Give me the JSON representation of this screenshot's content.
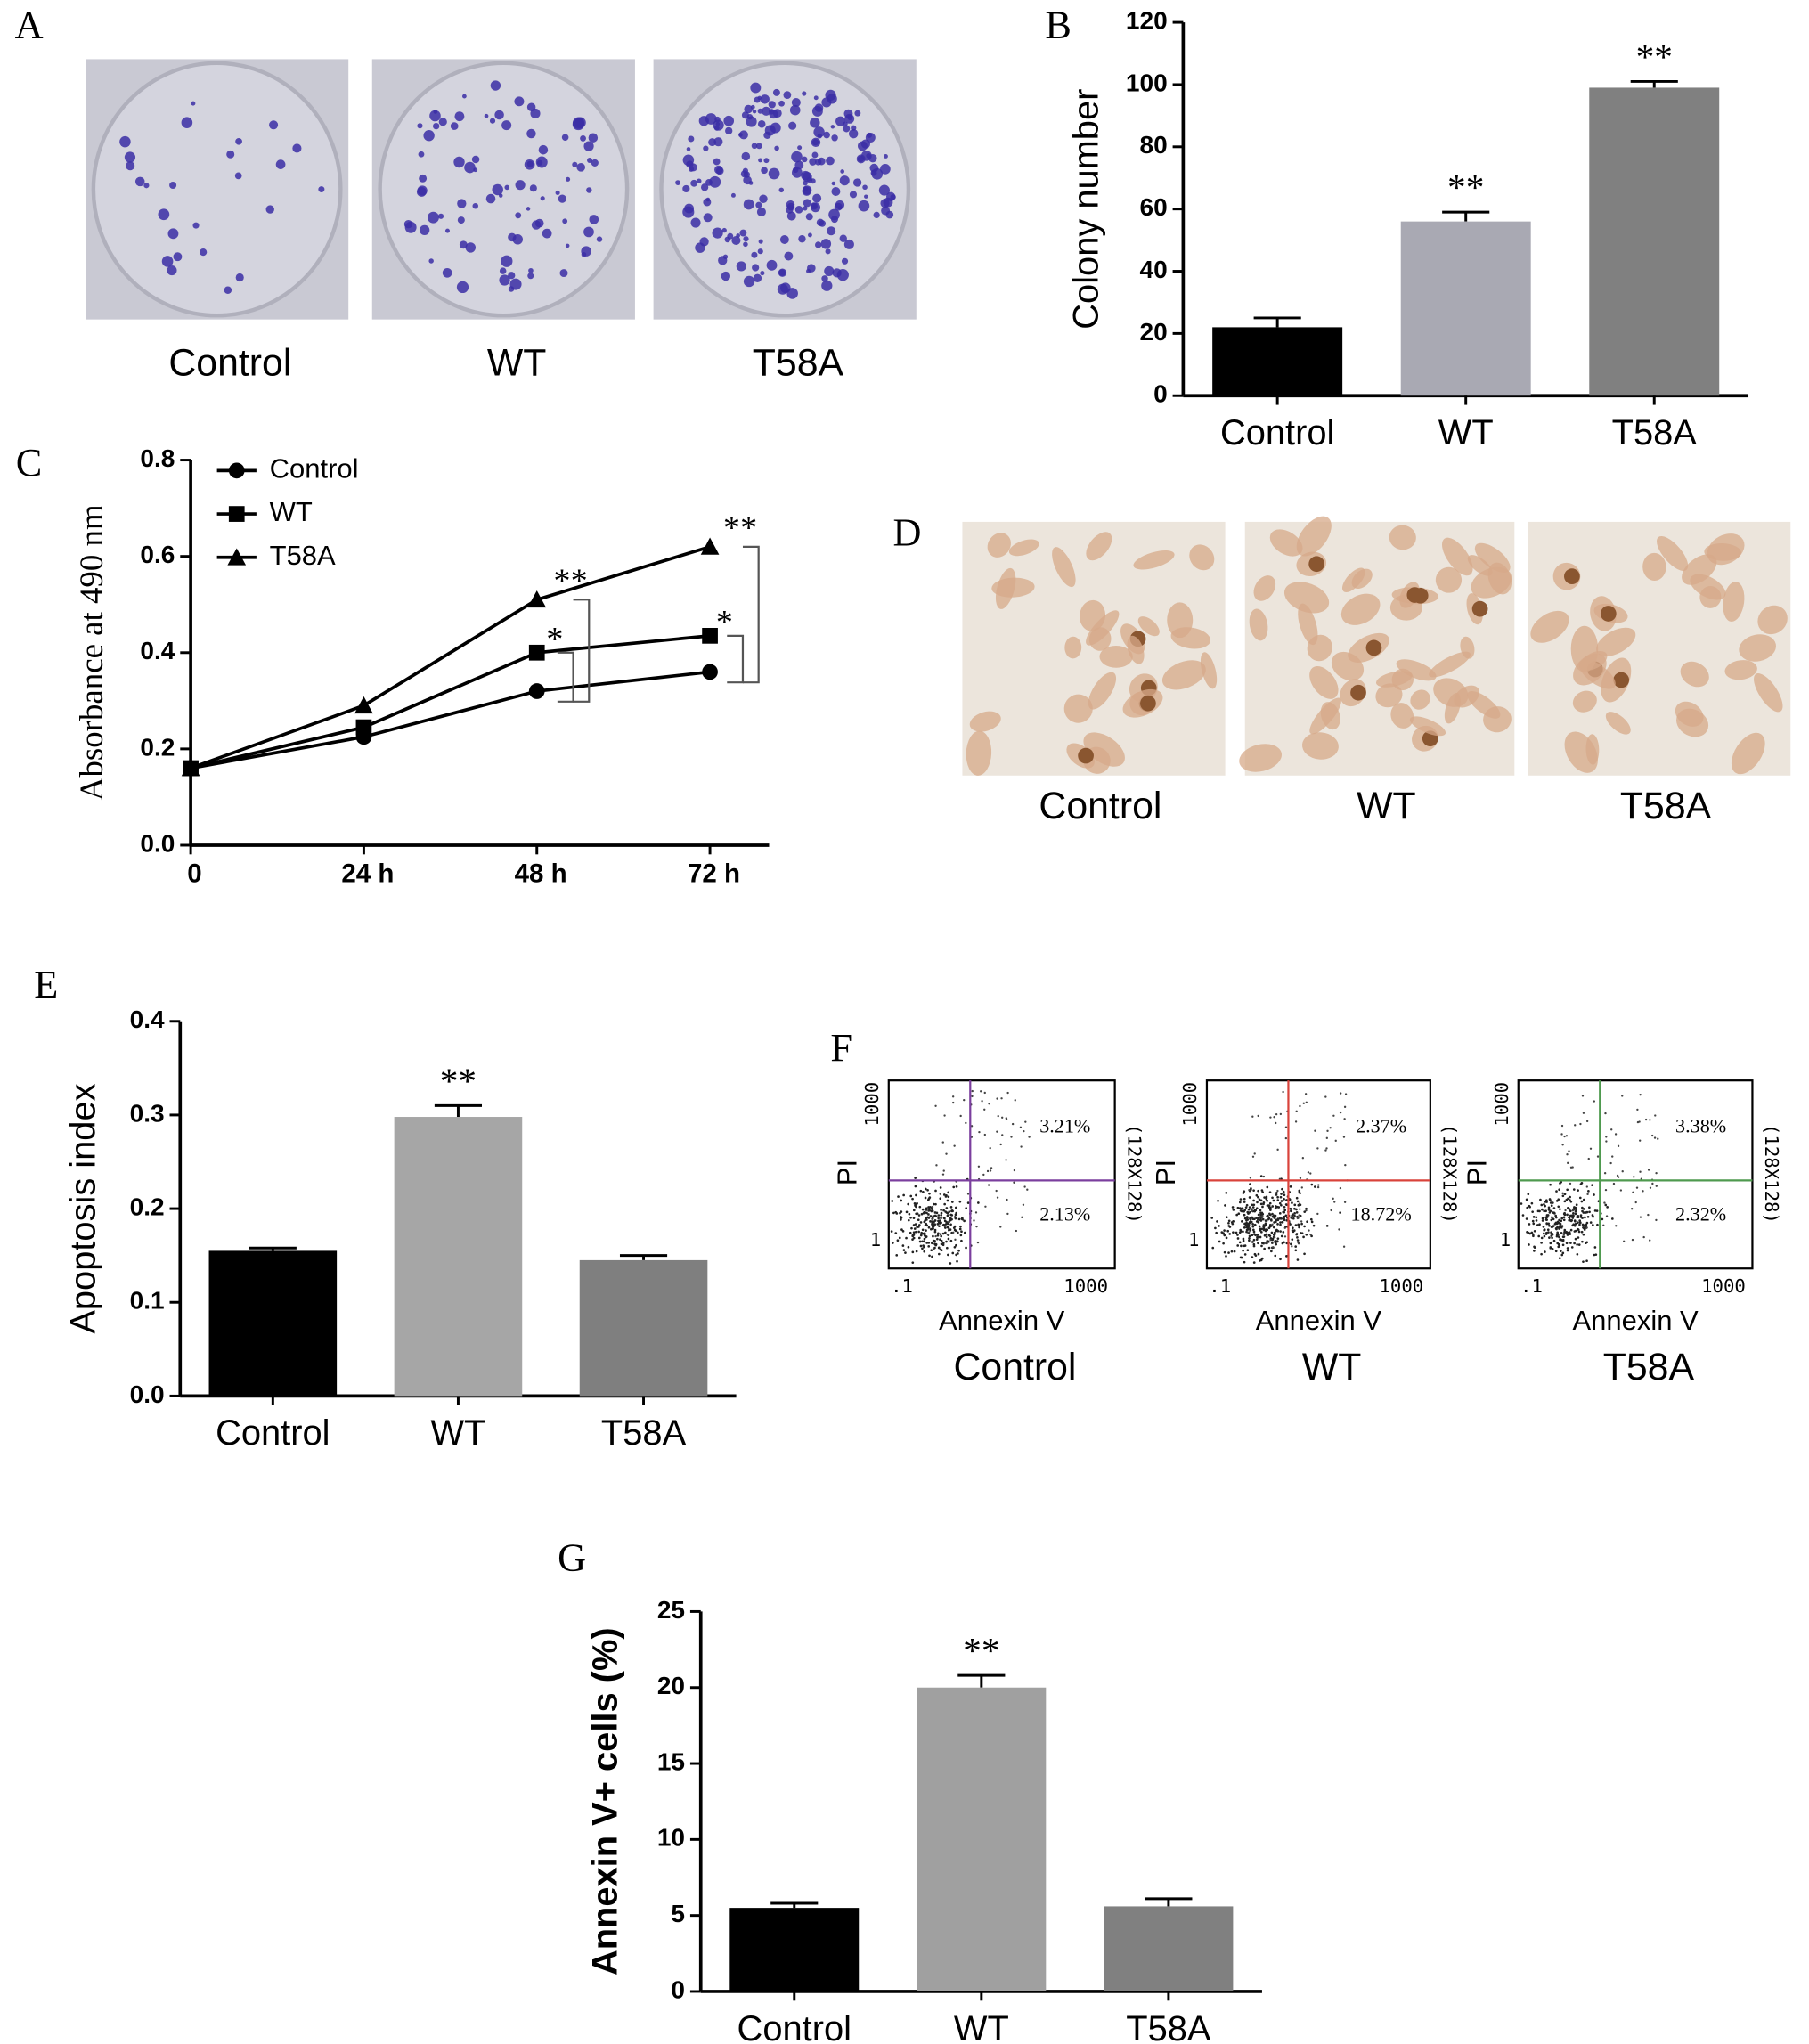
{
  "panel_labels": [
    "A",
    "B",
    "C",
    "D",
    "E",
    "F",
    "G"
  ],
  "colony_images": {
    "labels": [
      "Control",
      "WT",
      "T58A"
    ]
  },
  "cell_images": {
    "labels": [
      "Control",
      "WT",
      "T58A"
    ]
  },
  "flow_cytometry": {
    "x_label": "Annexin V",
    "y_label": "PI",
    "x_ticks": [
      ".1",
      "1000"
    ],
    "y_ticks": [
      "1",
      "1000"
    ],
    "resolution": "(128X128)",
    "plots": [
      {
        "group": "Control",
        "upper_right": "3.21%",
        "lower_right": "2.13%",
        "line_color": "#7b3f9e"
      },
      {
        "group": "WT",
        "upper_right": "2.37%",
        "lower_right": "18.72%",
        "line_color": "#d9433b"
      },
      {
        "group": "T58A",
        "upper_right": "3.38%",
        "lower_right": "2.32%",
        "line_color": "#4f9a4f"
      }
    ]
  },
  "chart_data": [
    {
      "type": "bar",
      "y_label": "Colony number",
      "categories": [
        "Control",
        "WT",
        "T58A"
      ],
      "values": [
        22,
        56,
        99
      ],
      "errors": [
        3,
        3,
        2
      ],
      "colors": [
        "#000000",
        "#a9a9b3",
        "#808080"
      ],
      "annotations": [
        null,
        "**",
        "**"
      ],
      "ylim": [
        0,
        120
      ],
      "yticks": [
        0,
        20,
        40,
        60,
        80,
        100,
        120
      ]
    },
    {
      "type": "line",
      "y_label": "Absorbance at 490 nm",
      "categories": [
        "0",
        "24 h",
        "48 h",
        "72 h"
      ],
      "series": [
        {
          "name": "Control",
          "marker": "circle",
          "color": "#000000",
          "values": [
            0.16,
            0.225,
            0.32,
            0.36
          ]
        },
        {
          "name": "WT",
          "marker": "square",
          "color": "#000000",
          "values": [
            0.16,
            0.245,
            0.4,
            0.435
          ]
        },
        {
          "name": "T58A",
          "marker": "triangle",
          "color": "#000000",
          "values": [
            0.16,
            0.29,
            0.51,
            0.62
          ]
        }
      ],
      "annotations": [
        "**",
        "*",
        "**",
        "*"
      ],
      "ylim": [
        0,
        0.8
      ],
      "yticks": [
        {
          "value": 0,
          "label": "0.0"
        },
        {
          "value": 0.2,
          "label": "0.2"
        },
        {
          "value": 0.4,
          "label": "0.4"
        },
        {
          "value": 0.6,
          "label": "0.6"
        },
        {
          "value": 0.8,
          "label": "0.8"
        }
      ]
    },
    {
      "type": "bar",
      "y_label": "Apoptosis index",
      "categories": [
        "Control",
        "WT",
        "T58A"
      ],
      "values": [
        0.155,
        0.298,
        0.145
      ],
      "errors": [
        0.003,
        0.012,
        0.005
      ],
      "colors": [
        "#000000",
        "#a6a6a6",
        "#7f7f7f"
      ],
      "annotations": [
        null,
        "**",
        null
      ],
      "ylim": [
        0,
        0.4
      ],
      "yticks": [
        {
          "value": 0,
          "label": "0.0"
        },
        {
          "value": 0.1,
          "label": "0.1"
        },
        {
          "value": 0.2,
          "label": "0.2"
        },
        {
          "value": 0.3,
          "label": "0.3"
        },
        {
          "value": 0.4,
          "label": "0.4"
        }
      ]
    },
    {
      "type": "bar",
      "y_label": "Annexin V+ cells (%)",
      "categories": [
        "Control",
        "WT",
        "T58A"
      ],
      "values": [
        5.5,
        20,
        5.6
      ],
      "errors": [
        0.3,
        0.8,
        0.5
      ],
      "colors": [
        "#000000",
        "#a0a0a0",
        "#808080"
      ],
      "annotations": [
        null,
        "**",
        null
      ],
      "ylim": [
        0,
        25
      ],
      "yticks": [
        0,
        5,
        10,
        15,
        20,
        25
      ]
    }
  ]
}
